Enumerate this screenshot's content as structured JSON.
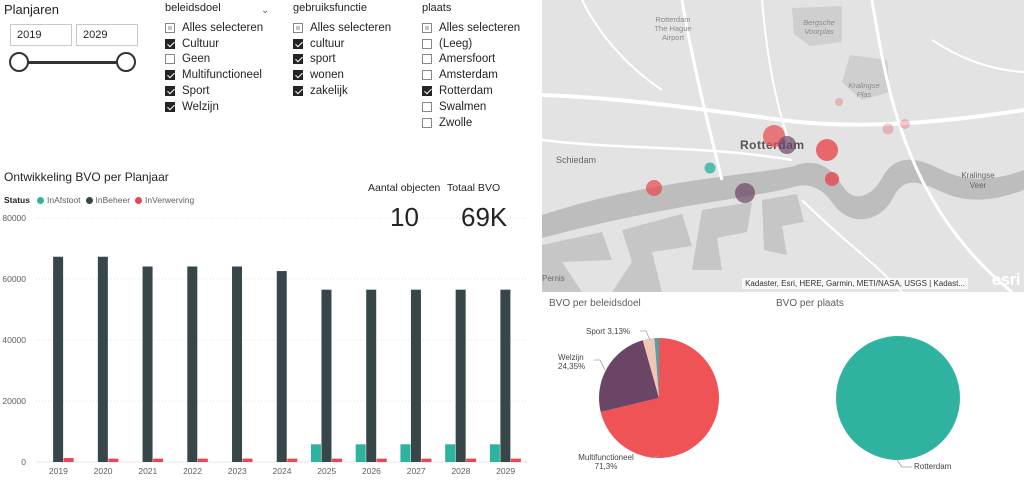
{
  "planjaren": {
    "title": "Planjaren",
    "from": "2019",
    "to": "2029"
  },
  "beleidsdoel": {
    "title": "beleidsdoel",
    "items": [
      {
        "label": "Alles selecteren",
        "state": "partial"
      },
      {
        "label": "Cultuur",
        "state": "checked"
      },
      {
        "label": "Geen",
        "state": "unchecked"
      },
      {
        "label": "Multifunctioneel",
        "state": "checked"
      },
      {
        "label": "Sport",
        "state": "checked"
      },
      {
        "label": "Welzijn",
        "state": "checked"
      }
    ]
  },
  "gebruiksfunctie": {
    "title": "gebruiksfunctie",
    "items": [
      {
        "label": "Alles selecteren",
        "state": "partial"
      },
      {
        "label": "cultuur",
        "state": "checked"
      },
      {
        "label": "sport",
        "state": "checked"
      },
      {
        "label": "wonen",
        "state": "checked"
      },
      {
        "label": "zakelijk",
        "state": "checked"
      }
    ]
  },
  "plaats": {
    "title": "plaats",
    "items": [
      {
        "label": "Alles selecteren",
        "state": "partial"
      },
      {
        "label": "(Leeg)",
        "state": "unchecked"
      },
      {
        "label": "Amersfoort",
        "state": "unchecked"
      },
      {
        "label": "Amsterdam",
        "state": "unchecked"
      },
      {
        "label": "Rotterdam",
        "state": "checked"
      },
      {
        "label": "Swalmen",
        "state": "unchecked"
      },
      {
        "label": "Zwolle",
        "state": "unchecked"
      }
    ]
  },
  "cards": {
    "objecten_label": "Aantal objecten",
    "objecten_value": "10",
    "bvo_label": "Totaal BVO",
    "bvo_value": "69K"
  },
  "colors": {
    "afstoot": "#2fb3a0",
    "beheer": "#374649",
    "verwerving": "#e8474f",
    "welzijn": "#6b4566",
    "sport": "#f2c6b4",
    "cultuur": "#4ea3a8"
  },
  "chart_data": [
    {
      "type": "bar",
      "title": "Ontwikkeling BVO per Planjaar",
      "legend_title": "Status",
      "legend_position": "top-left",
      "categories": [
        "2019",
        "2020",
        "2021",
        "2022",
        "2023",
        "2024",
        "2025",
        "2026",
        "2027",
        "2028",
        "2029"
      ],
      "series": [
        {
          "name": "InAfstoot",
          "color": "#2fb3a0",
          "values": [
            0,
            0,
            0,
            0,
            0,
            0,
            5800,
            5800,
            5800,
            5800,
            5800
          ]
        },
        {
          "name": "InBeheer",
          "color": "#374649",
          "values": [
            67300,
            67300,
            64100,
            64100,
            64100,
            62600,
            56500,
            56500,
            56500,
            56500,
            56500
          ]
        },
        {
          "name": "InVerwerving",
          "color": "#e8474f",
          "values": [
            1300,
            1100,
            1100,
            1100,
            1100,
            1100,
            1100,
            1100,
            1100,
            1100,
            1100
          ]
        }
      ],
      "y_ticks": [
        "0",
        "20000",
        "40000",
        "60000",
        "80000"
      ],
      "ylim": [
        0,
        80000
      ],
      "grid": true
    },
    {
      "type": "pie",
      "title": "BVO per beleidsdoel",
      "slices": [
        {
          "name": "Multifunctioneel",
          "label": "Multifunctioneel\n71,3%",
          "value": 71.3,
          "color": "#f05356"
        },
        {
          "name": "Welzijn",
          "label": "Welzijn\n24,35%",
          "value": 24.35,
          "color": "#6b4566"
        },
        {
          "name": "Sport",
          "label": "Sport 3,13%",
          "value": 3.13,
          "color": "#f2c6b4"
        },
        {
          "name": "Cultuur",
          "label": "",
          "value": 1.22,
          "color": "#4ea3a8"
        }
      ]
    },
    {
      "type": "pie",
      "title": "BVO per plaats",
      "slices": [
        {
          "name": "Rotterdam",
          "label": "Rotterdam",
          "value": 100,
          "color": "#2fb3a0"
        }
      ]
    }
  ],
  "map": {
    "labels": {
      "rotterdam": "Rotterdam",
      "schiedam": "Schiedam",
      "kralingse_veer": "Kralingse\nVeer",
      "airport": "Rotterdam\nThe Hague\nAirport",
      "bergsche": "Bergsche\nVoorplas",
      "kralingse_plas": "Kralingse\nPlas",
      "pernis": "Pernis"
    },
    "attribution": "Kadaster, Esri, HERE, Garmin, METI/NASA, USGS | Kadast...",
    "logo": "esri"
  }
}
